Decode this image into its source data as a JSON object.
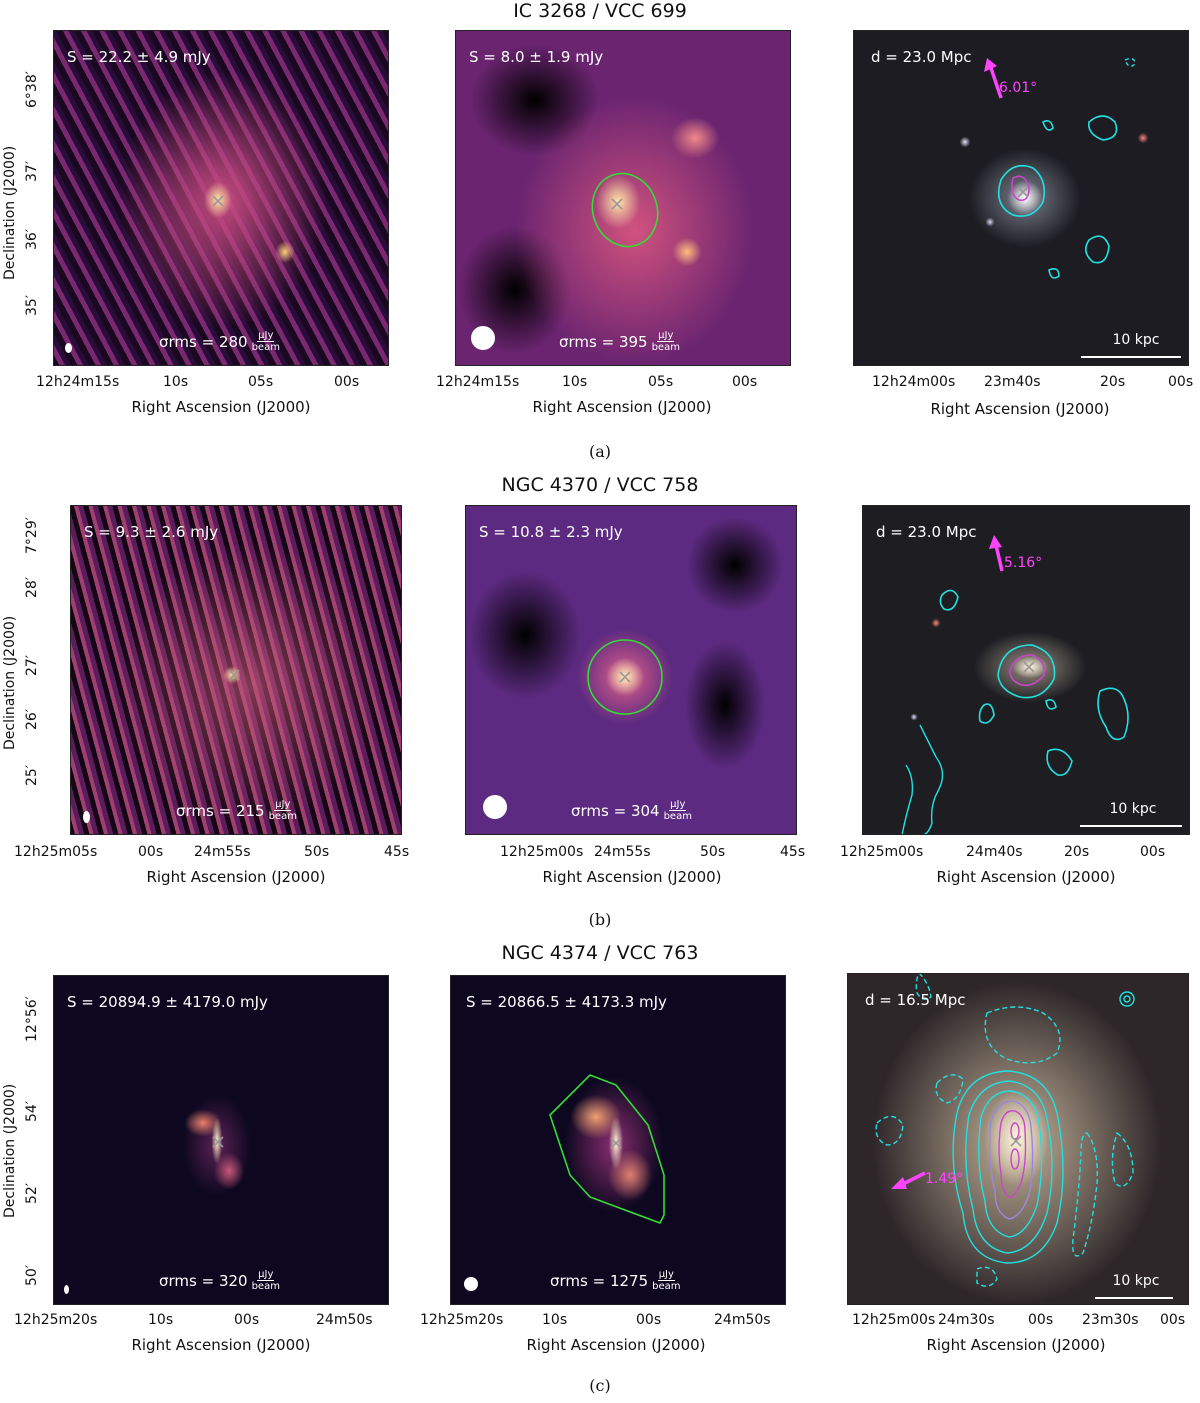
{
  "rows": [
    {
      "title": "IC 3268 / VCC 699",
      "caption": "(a)",
      "ylabel": "Declination (J2000)",
      "yticks": [
        "6°38′",
        "37′",
        "36′",
        "35′"
      ],
      "left": {
        "flux": "S = 22.2 ± 4.9 mJy",
        "rms_value": "σrms = 280",
        "rms_unit_num": "μJy",
        "rms_unit_den": "beam",
        "xticks": [
          "12h24m15s",
          "10s",
          "05s",
          "00s"
        ],
        "xlabel": "Right Ascension (J2000)"
      },
      "mid": {
        "flux": "S = 8.0 ± 1.9 mJy",
        "rms_value": "σrms = 395",
        "rms_unit_num": "μJy",
        "rms_unit_den": "beam",
        "xticks": [
          "12h24m15s",
          "10s",
          "05s",
          "00s"
        ],
        "xlabel": "Right Ascension (J2000)"
      },
      "right": {
        "distance": "d = 23.0 Mpc",
        "angle": "6.01°",
        "scale": "10 kpc",
        "xticks": [
          "12h24m00s",
          "23m40s",
          "20s",
          "00s"
        ],
        "xlabel": "Right Ascension (J2000)"
      }
    },
    {
      "title": "NGC 4370 / VCC 758",
      "caption": "(b)",
      "ylabel": "Declination (J2000)",
      "yticks": [
        "7°29′",
        "28′",
        "27′",
        "26′",
        "25′"
      ],
      "left": {
        "flux": "S = 9.3 ± 2.6 mJy",
        "rms_value": "σrms = 215",
        "rms_unit_num": "μJy",
        "rms_unit_den": "beam",
        "xticks": [
          "12h25m05s",
          "00s",
          "24m55s",
          "50s",
          "45s"
        ],
        "xlabel": "Right Ascension (J2000)"
      },
      "mid": {
        "flux": "S = 10.8 ± 2.3 mJy",
        "rms_value": "σrms = 304",
        "rms_unit_num": "μJy",
        "rms_unit_den": "beam",
        "xticks": [
          "12h25m00s",
          "24m55s",
          "50s",
          "45s"
        ],
        "xlabel": "Right Ascension (J2000)"
      },
      "right": {
        "distance": "d = 23.0 Mpc",
        "angle": "5.16°",
        "scale": "10 kpc",
        "xticks": [
          "12h25m00s",
          "24m40s",
          "20s",
          "00s"
        ],
        "xlabel": "Right Ascension (J2000)"
      }
    },
    {
      "title": "NGC 4374 / VCC 763",
      "caption": "(c)",
      "ylabel": "Declination (J2000)",
      "yticks": [
        "12°56′",
        "54′",
        "52′",
        "50′"
      ],
      "left": {
        "flux": "S = 20894.9 ± 4179.0 mJy",
        "rms_value": "σrms = 320",
        "rms_unit_num": "μJy",
        "rms_unit_den": "beam",
        "xticks": [
          "12h25m20s",
          "10s",
          "00s",
          "24m50s"
        ],
        "xlabel": "Right Ascension (J2000)"
      },
      "mid": {
        "flux": "S = 20866.5 ± 4173.3 mJy",
        "rms_value": "σrms = 1275",
        "rms_unit_num": "μJy",
        "rms_unit_den": "beam",
        "xticks": [
          "12h25m20s",
          "10s",
          "00s",
          "24m50s"
        ],
        "xlabel": "Right Ascension (J2000)"
      },
      "right": {
        "distance": "d = 16.5 Mpc",
        "angle": "1.49°",
        "scale": "10 kpc",
        "xticks": [
          "12h25m00s",
          "24m30s",
          "00s",
          "23m30s",
          "00s"
        ],
        "xlabel": "Right Ascension (J2000)"
      }
    }
  ],
  "colors": {
    "radio_bg_ab": "#2a0c3a",
    "radio_mid": "#c0427a",
    "radio_hot": "#ffd27a",
    "radio_bg_c": "#0d0820",
    "contour": "#22e0e0",
    "inner_contour": "#cc44cc",
    "aperture": "#33dd33",
    "arrow": "#ff44ff",
    "optical_bg": "#1c1c22"
  }
}
